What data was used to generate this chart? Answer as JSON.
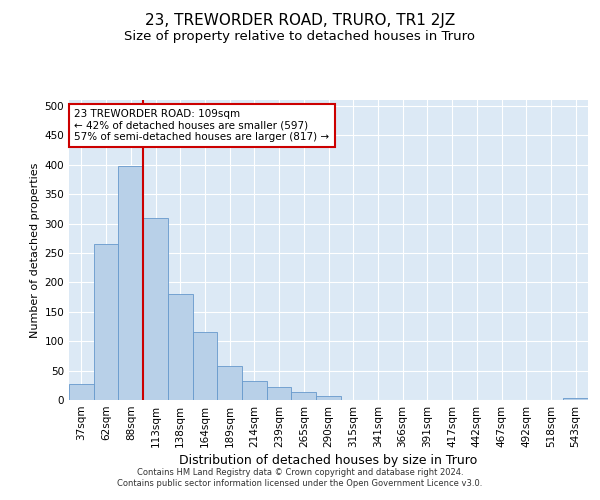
{
  "title": "23, TREWORDER ROAD, TRURO, TR1 2JZ",
  "subtitle": "Size of property relative to detached houses in Truro",
  "xlabel": "Distribution of detached houses by size in Truro",
  "ylabel": "Number of detached properties",
  "bar_labels": [
    "37sqm",
    "62sqm",
    "88sqm",
    "113sqm",
    "138sqm",
    "164sqm",
    "189sqm",
    "214sqm",
    "239sqm",
    "265sqm",
    "290sqm",
    "315sqm",
    "341sqm",
    "366sqm",
    "391sqm",
    "417sqm",
    "442sqm",
    "467sqm",
    "492sqm",
    "518sqm",
    "543sqm"
  ],
  "bar_values": [
    28,
    265,
    398,
    310,
    180,
    115,
    58,
    32,
    22,
    14,
    7,
    0,
    0,
    0,
    0,
    0,
    0,
    0,
    0,
    0,
    3
  ],
  "bar_color": "#b8d0e8",
  "bar_edge_color": "#6699cc",
  "vline_x_index": 2.5,
  "vline_color": "#cc0000",
  "annotation_text": "23 TREWORDER ROAD: 109sqm\n← 42% of detached houses are smaller (597)\n57% of semi-detached houses are larger (817) →",
  "annotation_box_color": "#ffffff",
  "annotation_box_edge": "#cc0000",
  "ylim": [
    0,
    510
  ],
  "yticks": [
    0,
    50,
    100,
    150,
    200,
    250,
    300,
    350,
    400,
    450,
    500
  ],
  "background_color": "#dce9f5",
  "footer_text": "Contains HM Land Registry data © Crown copyright and database right 2024.\nContains public sector information licensed under the Open Government Licence v3.0.",
  "title_fontsize": 11,
  "subtitle_fontsize": 9.5,
  "xlabel_fontsize": 9,
  "ylabel_fontsize": 8,
  "tick_fontsize": 7.5,
  "annot_fontsize": 7.5
}
